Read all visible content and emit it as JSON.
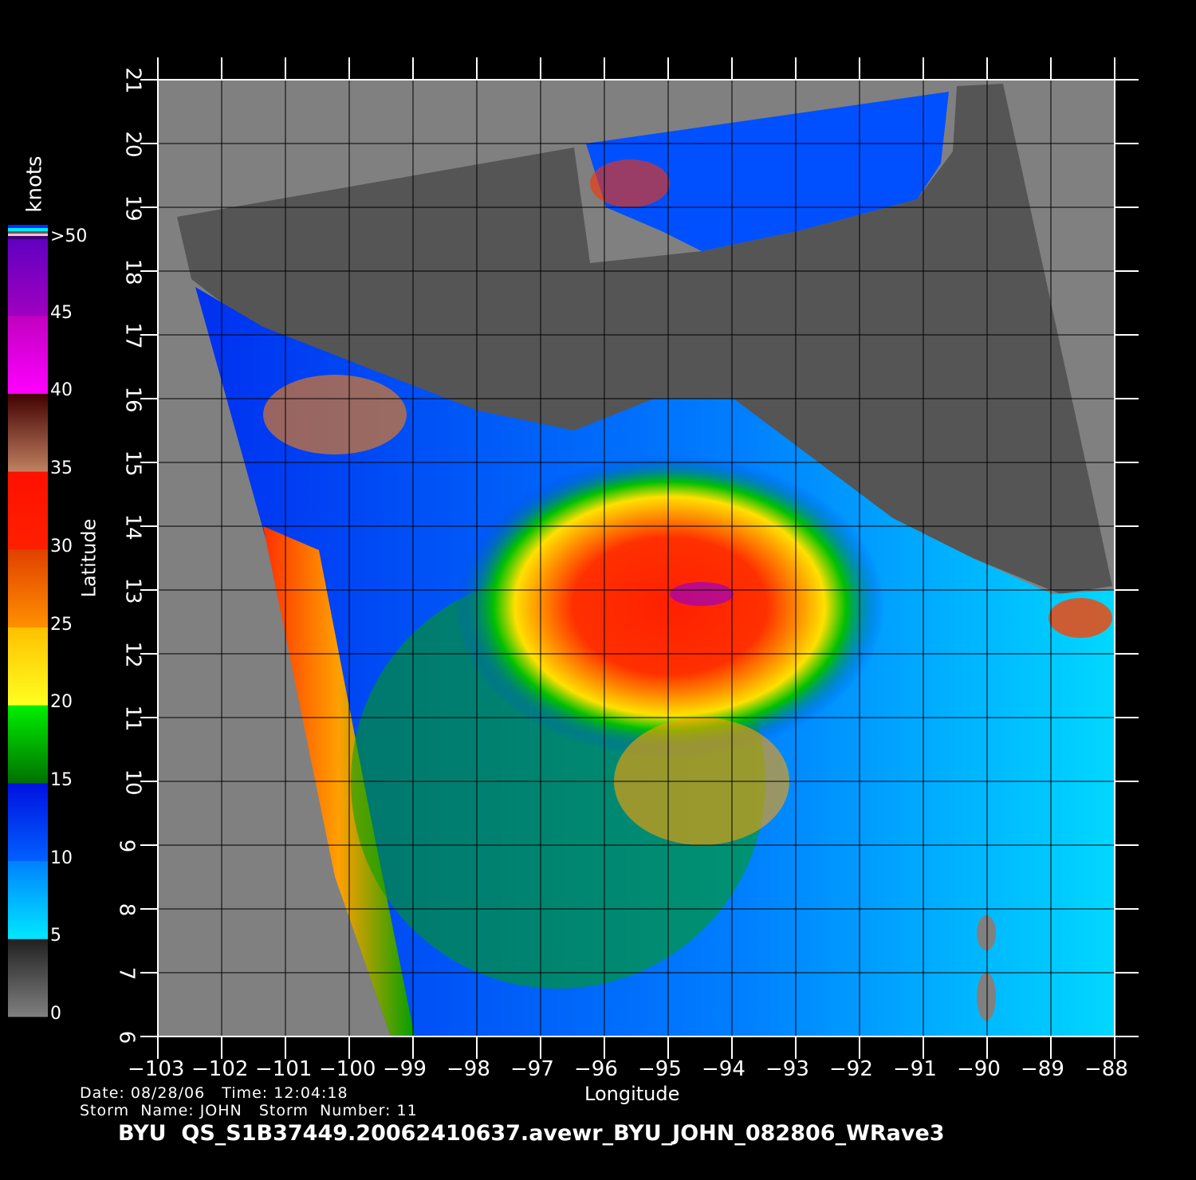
{
  "map": {
    "lon_range": [
      -103,
      -88
    ],
    "lat_range": [
      6,
      21
    ],
    "lon_ticks": [
      -103,
      -102,
      -101,
      -100,
      -99,
      -98,
      -97,
      -96,
      -95,
      -94,
      -93,
      -92,
      -91,
      -90,
      -89,
      -88
    ],
    "lat_ticks": [
      6,
      7,
      8,
      9,
      10,
      11,
      12,
      13,
      14,
      15,
      16,
      17,
      18,
      19,
      20,
      21
    ],
    "xlabel": "Longitude",
    "ylabel": "Latitude",
    "grid": true,
    "storm_center": {
      "lon": -94.6,
      "lat": 12.8
    },
    "colors": {
      "background": "#000000",
      "nodata": "#808080",
      "land": "#555555",
      "coast_mask": "#a0a0a0"
    }
  },
  "colorbar": {
    "unit": "knots",
    "labels": [
      "0",
      "5",
      "10",
      "15",
      "20",
      "25",
      "30",
      "35",
      "40",
      "45",
      ">50"
    ],
    "segments": [
      {
        "from": 0,
        "to": 5,
        "colors": [
          "#808080",
          "#202020"
        ]
      },
      {
        "from": 5,
        "to": 10,
        "colors": [
          "#00e8ff",
          "#0080ff"
        ]
      },
      {
        "from": 10,
        "to": 15,
        "colors": [
          "#0060ff",
          "#0010e0"
        ]
      },
      {
        "from": 15,
        "to": 20,
        "colors": [
          "#007000",
          "#00f000"
        ]
      },
      {
        "from": 20,
        "to": 25,
        "colors": [
          "#ffff20",
          "#ffc000"
        ]
      },
      {
        "from": 25,
        "to": 30,
        "colors": [
          "#ff9000",
          "#e04000"
        ]
      },
      {
        "from": 30,
        "to": 35,
        "colors": [
          "#ff2000",
          "#ff1000"
        ]
      },
      {
        "from": 35,
        "to": 40,
        "colors": [
          "#c08060",
          "#400000"
        ]
      },
      {
        "from": 40,
        "to": 45,
        "colors": [
          "#ff00ff",
          "#c000c0"
        ]
      },
      {
        "from": 45,
        "to": 50,
        "colors": [
          "#a000c0",
          "#6000c0"
        ]
      }
    ]
  },
  "info": {
    "date_line": "Date: 08/28/06   Time: 12:04:18",
    "storm_line": "Storm  Name: JOHN   Storm  Number: 11",
    "title": "BYU  QS_S1B37449.20062410637.avewr_BYU_JOHN_082806_WRave3"
  }
}
